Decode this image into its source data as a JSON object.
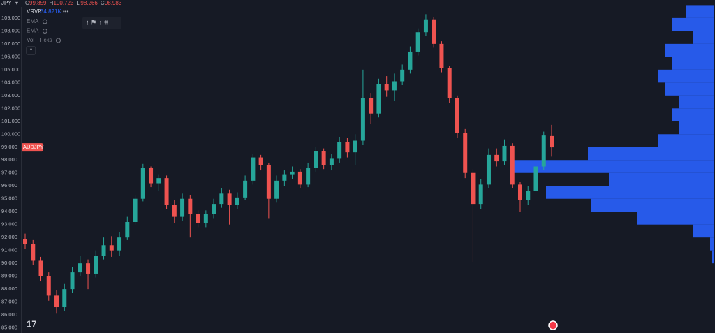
{
  "chart_data": {
    "type": "candlestick",
    "symbol": "JPY",
    "ohlc_letters": [
      "O",
      "H",
      "L",
      "C"
    ],
    "open": [
      91.9,
      91.5,
      90.2,
      89.0,
      87.5,
      86.6,
      88.0,
      89.3,
      90.0,
      89.2,
      90.6,
      91.4,
      91.0,
      92.0,
      93.2,
      95.0,
      97.4,
      96.2,
      96.6,
      94.5,
      93.6,
      95.0,
      93.8,
      93.1,
      93.8,
      94.6,
      95.4,
      94.5,
      95.1,
      96.4,
      98.2,
      97.6,
      95.0,
      96.4,
      96.9,
      97.1,
      96.1,
      97.4,
      98.7,
      97.6,
      98.1,
      99.4,
      98.6,
      99.5,
      102.8,
      101.6,
      103.9,
      103.4,
      104.1,
      105.0,
      106.4,
      107.9,
      108.9,
      107.0,
      105.1,
      102.8,
      100.1,
      97.0,
      94.6,
      96.1,
      98.4,
      97.9,
      99.1,
      96.1,
      94.9,
      95.6,
      97.5,
      99.859
    ],
    "high": [
      92.3,
      91.8,
      90.5,
      89.3,
      87.9,
      88.4,
      89.7,
      90.6,
      90.3,
      91.0,
      92.0,
      92.1,
      92.4,
      93.6,
      95.3,
      97.7,
      97.5,
      96.9,
      96.8,
      94.9,
      95.4,
      95.3,
      94.1,
      94.1,
      95.0,
      95.8,
      95.7,
      95.5,
      96.8,
      98.5,
      98.4,
      97.8,
      96.8,
      97.2,
      97.5,
      97.3,
      97.8,
      99.0,
      98.9,
      98.5,
      99.8,
      99.7,
      100.0,
      105.0,
      103.2,
      104.3,
      104.5,
      104.7,
      105.4,
      106.8,
      108.2,
      109.3,
      109.1,
      107.2,
      105.3,
      103.0,
      100.4,
      97.3,
      96.5,
      98.9,
      98.9,
      99.6,
      99.3,
      96.3,
      96.0,
      97.9,
      100.2,
      100.723
    ],
    "low": [
      91.1,
      89.9,
      88.6,
      87.1,
      86.1,
      86.3,
      87.7,
      89.0,
      88.0,
      88.9,
      90.3,
      90.5,
      90.6,
      91.8,
      93.0,
      94.8,
      95.9,
      95.6,
      94.2,
      93.1,
      93.3,
      92.0,
      92.8,
      92.8,
      93.5,
      94.3,
      93.0,
      94.2,
      94.9,
      96.1,
      97.2,
      93.5,
      94.7,
      96.0,
      96.5,
      95.8,
      95.9,
      97.1,
      97.3,
      97.2,
      97.8,
      98.2,
      97.6,
      99.2,
      100.8,
      101.3,
      102.9,
      102.6,
      103.8,
      104.7,
      106.1,
      107.6,
      106.7,
      104.8,
      102.4,
      99.7,
      96.6,
      90.1,
      94.2,
      95.8,
      97.5,
      97.6,
      95.8,
      94.0,
      94.5,
      95.3,
      97.2,
      98.266
    ],
    "close": [
      91.5,
      90.2,
      89.0,
      87.5,
      86.6,
      88.0,
      89.3,
      90.0,
      89.2,
      90.6,
      91.4,
      91.0,
      92.0,
      93.2,
      95.0,
      97.4,
      96.2,
      96.6,
      94.5,
      93.6,
      95.0,
      93.8,
      93.1,
      93.8,
      94.6,
      95.4,
      94.5,
      95.1,
      96.4,
      98.2,
      97.6,
      95.0,
      96.4,
      96.9,
      97.1,
      96.1,
      97.4,
      98.7,
      97.6,
      98.1,
      99.4,
      98.6,
      99.5,
      102.8,
      101.6,
      103.9,
      103.4,
      104.1,
      105.0,
      106.4,
      107.9,
      108.9,
      107.0,
      105.1,
      102.8,
      100.1,
      97.0,
      94.6,
      96.1,
      98.4,
      97.9,
      99.1,
      96.1,
      94.9,
      95.6,
      97.5,
      99.9,
      98.983
    ],
    "up_color": "#26a69a",
    "down_color": "#ef5350",
    "ylim": [
      84.6,
      110.4
    ],
    "yticks": [
      {
        "value": 85,
        "label": "85.000"
      },
      {
        "value": 86,
        "label": "86.000"
      },
      {
        "value": 87,
        "label": "87.000"
      },
      {
        "value": 88,
        "label": "88.000"
      },
      {
        "value": 89,
        "label": "89.000"
      },
      {
        "value": 90,
        "label": "90.000"
      },
      {
        "value": 91,
        "label": "91.000"
      },
      {
        "value": 92,
        "label": "92.000"
      },
      {
        "value": 93,
        "label": "93.000"
      },
      {
        "value": 94,
        "label": "94.000"
      },
      {
        "value": 95,
        "label": "95.000"
      },
      {
        "value": 96,
        "label": "96.000"
      },
      {
        "value": 97,
        "label": "97.000"
      },
      {
        "value": 98,
        "label": "98.000"
      },
      {
        "value": 99,
        "label": "99.000"
      },
      {
        "value": 100,
        "label": "100.000"
      },
      {
        "value": 101,
        "label": "101.000"
      },
      {
        "value": 102,
        "label": "102.000"
      },
      {
        "value": 103,
        "label": "103.000"
      },
      {
        "value": 104,
        "label": "104.000"
      },
      {
        "value": 105,
        "label": "105.000"
      },
      {
        "value": 106,
        "label": "106.000"
      },
      {
        "value": 107,
        "label": "107.000"
      },
      {
        "value": 108,
        "label": "108.000"
      },
      {
        "value": 109,
        "label": "109.000"
      }
    ],
    "price_tag": "AUDJPY",
    "volume_profile": {
      "name": "VRVP",
      "value_label": "34.821K",
      "color": "#2962ff",
      "levels": [
        90,
        91,
        92,
        93,
        94,
        95,
        96,
        97,
        98,
        99,
        100,
        101,
        102,
        103,
        104,
        105,
        106,
        107,
        108,
        109
      ],
      "values": [
        2,
        5,
        30,
        110,
        175,
        240,
        150,
        290,
        180,
        80,
        50,
        60,
        50,
        70,
        80,
        60,
        70,
        30,
        60,
        40
      ]
    }
  },
  "indicators": [
    "EMA",
    "EMA",
    "Vol · Ticks"
  ]
}
